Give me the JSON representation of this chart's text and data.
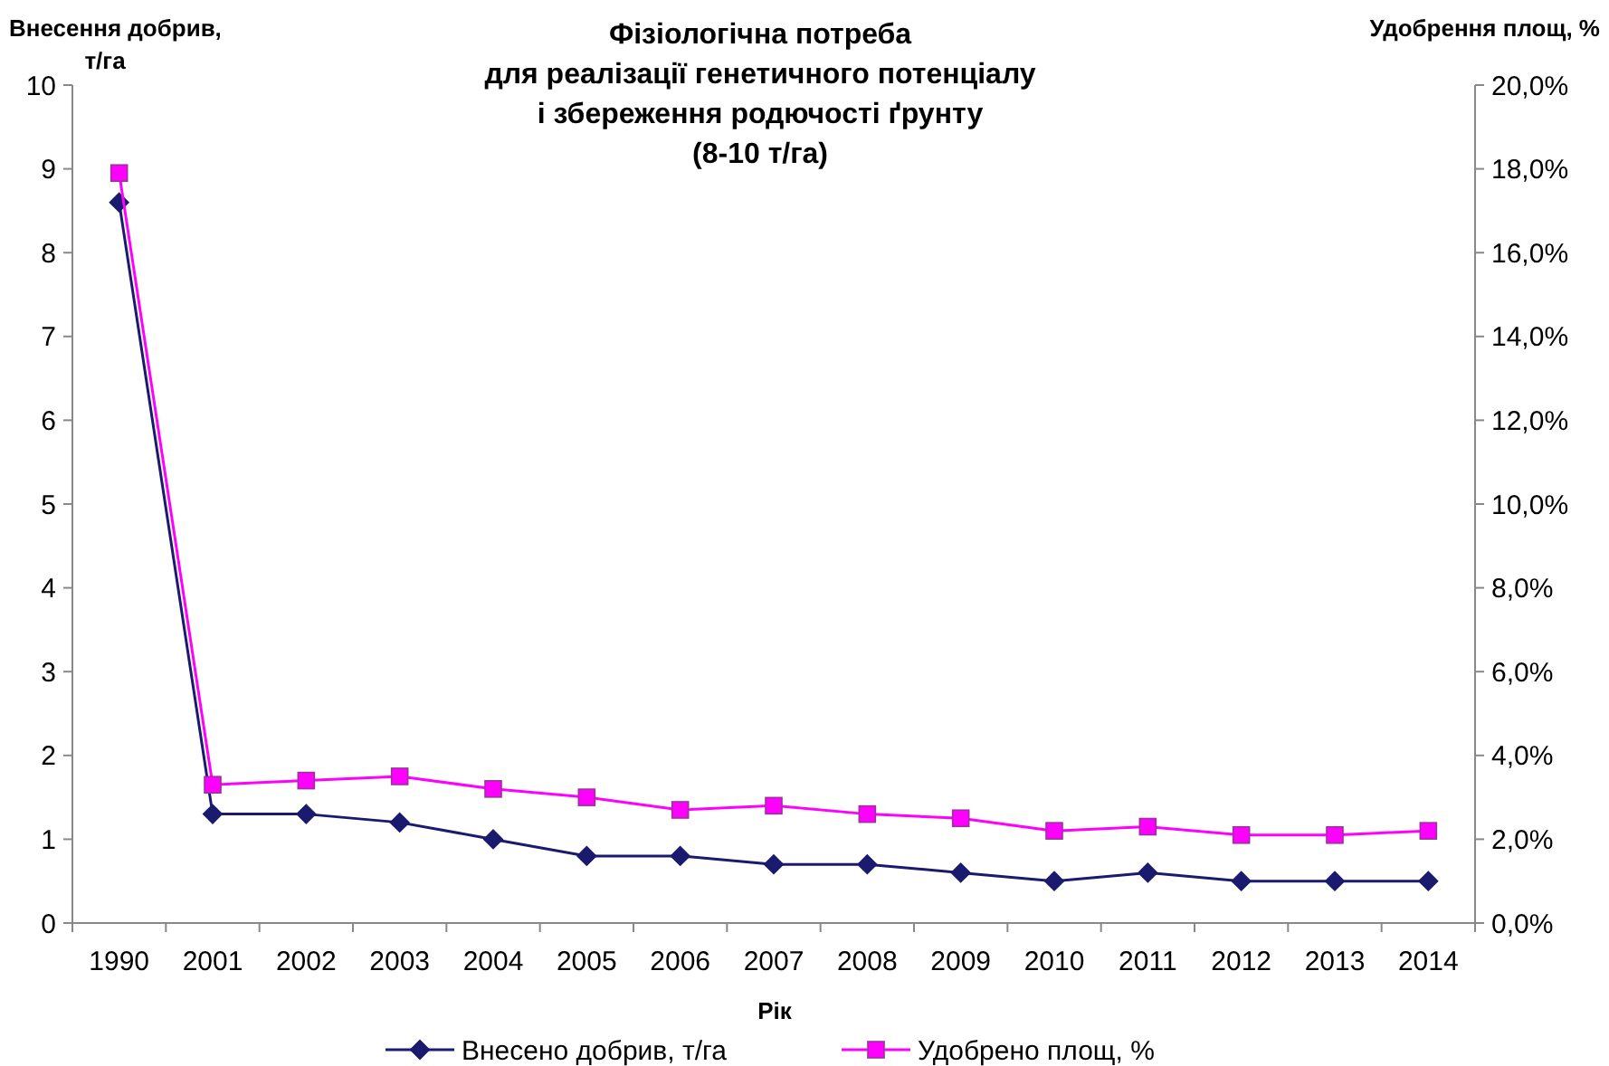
{
  "chart_data": {
    "type": "line",
    "title": "Фізіологічна потреба\nдля реалізації генетичного потенціалу\nі збереження родючості ґрунту\n(8-10 т/га)",
    "xlabel": "Рік",
    "ylabel": "Внесення добрив,\nт/га",
    "y2label": "Удобрення площ, %",
    "categories": [
      "1990",
      "2001",
      "2002",
      "2003",
      "2004",
      "2005",
      "2006",
      "2007",
      "2008",
      "2009",
      "2010",
      "2011",
      "2012",
      "2013",
      "2014"
    ],
    "series": [
      {
        "name": "Внесено добрив, т/га",
        "color": "#1a1a6e",
        "marker": "diamond",
        "values": [
          8.6,
          1.3,
          1.3,
          1.2,
          1.0,
          0.8,
          0.8,
          0.7,
          0.7,
          0.6,
          0.5,
          0.6,
          0.5,
          0.5,
          0.5
        ]
      },
      {
        "name": "Удобрено площ, %",
        "color": "#ff00ff",
        "marker": "square",
        "axis": "y2",
        "values": [
          17.9,
          3.3,
          3.4,
          3.5,
          3.2,
          3.0,
          2.7,
          2.8,
          2.6,
          2.5,
          2.2,
          2.3,
          2.1,
          2.1,
          2.2
        ]
      }
    ],
    "ylim": [
      0,
      10
    ],
    "yticks": [
      0,
      1,
      2,
      3,
      4,
      5,
      6,
      7,
      8,
      9,
      10
    ],
    "y2lim": [
      0,
      20
    ],
    "y2ticks": [
      {
        "value": 0,
        "label": "0,0%"
      },
      {
        "value": 2,
        "label": "2,0%"
      },
      {
        "value": 4,
        "label": "4,0%"
      },
      {
        "value": 6,
        "label": "6,0%"
      },
      {
        "value": 8,
        "label": "8,0%"
      },
      {
        "value": 10,
        "label": "10,0%"
      },
      {
        "value": 12,
        "label": "12,0%"
      },
      {
        "value": 14,
        "label": "14,0%"
      },
      {
        "value": 16,
        "label": "16,0%"
      },
      {
        "value": 18,
        "label": "18,0%"
      },
      {
        "value": 20,
        "label": "20,0%"
      }
    ],
    "grid": false,
    "legend": "bottom"
  }
}
